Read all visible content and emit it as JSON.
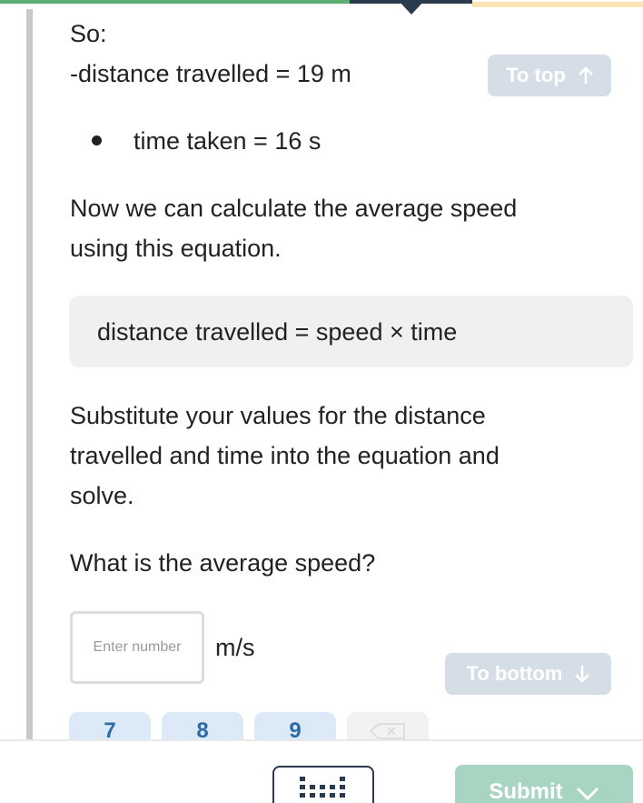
{
  "content": {
    "lead": "So:",
    "facts": [
      "-distance travelled = 19 m",
      "time taken = 16 s"
    ],
    "intro_lines": [
      "Now we can calculate the average speed",
      "using this equation."
    ],
    "equation": "distance travelled = speed × time",
    "instruction_lines": [
      "Substitute your values for the distance",
      "travelled and time into the equation and",
      "solve."
    ],
    "question": "What is the average speed?"
  },
  "answer": {
    "placeholder": "Enter number",
    "unit": "m/s"
  },
  "buttons": {
    "to_top": "To top",
    "to_bottom": "To bottom",
    "submit": "Submit"
  },
  "keypad": [
    "7",
    "8",
    "9"
  ]
}
